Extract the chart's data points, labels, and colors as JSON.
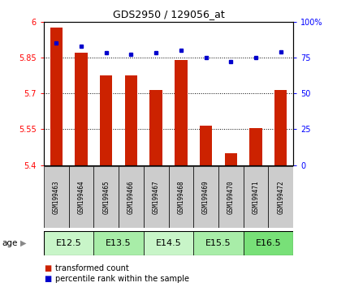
{
  "title": "GDS2950 / 129056_at",
  "samples": [
    "GSM199463",
    "GSM199464",
    "GSM199465",
    "GSM199466",
    "GSM199467",
    "GSM199468",
    "GSM199469",
    "GSM199470",
    "GSM199471",
    "GSM199472"
  ],
  "red_values": [
    5.975,
    5.87,
    5.775,
    5.775,
    5.715,
    5.84,
    5.565,
    5.45,
    5.555,
    5.715
  ],
  "blue_values": [
    85,
    83,
    78,
    77,
    78,
    80,
    75,
    72,
    75,
    79
  ],
  "ylim_left": [
    5.4,
    6.0
  ],
  "ylim_right": [
    0,
    100
  ],
  "yticks_left": [
    5.4,
    5.55,
    5.7,
    5.85,
    6.0
  ],
  "ytick_labels_left": [
    "5.4",
    "5.55",
    "5.7",
    "5.85",
    "6"
  ],
  "yticks_right": [
    0,
    25,
    50,
    75,
    100
  ],
  "ytick_labels_right": [
    "0",
    "25",
    "50",
    "75",
    "100%"
  ],
  "age_groups": [
    {
      "label": "E12.5",
      "samples": [
        0,
        1
      ],
      "color": "#c8f5c8"
    },
    {
      "label": "E13.5",
      "samples": [
        2,
        3
      ],
      "color": "#a8eda8"
    },
    {
      "label": "E14.5",
      "samples": [
        4,
        5
      ],
      "color": "#c8f5c8"
    },
    {
      "label": "E15.5",
      "samples": [
        6,
        7
      ],
      "color": "#a8eda8"
    },
    {
      "label": "E16.5",
      "samples": [
        8,
        9
      ],
      "color": "#78e078"
    }
  ],
  "bar_color": "#cc2200",
  "dot_color": "#0000cc",
  "bar_width": 0.5,
  "legend_red": "transformed count",
  "legend_blue": "percentile rank within the sample",
  "age_label": "age",
  "sample_box_color": "#cccccc"
}
